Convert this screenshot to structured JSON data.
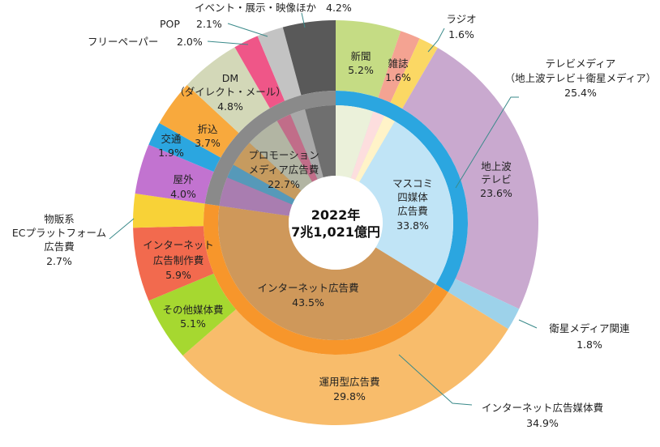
{
  "chart_data": {
    "type": "pie",
    "subtype": "nested-donut",
    "center_label": [
      "2022年",
      "7兆1,021億円"
    ],
    "outer_ring": [
      {
        "name": "新聞",
        "value": 5.2,
        "color": "#c5dc84"
      },
      {
        "name": "雑誌",
        "value": 1.6,
        "color": "#f4a392"
      },
      {
        "name": "ラジオ",
        "value": 1.6,
        "color": "#fbd864"
      },
      {
        "name": "地上波テレビ",
        "value": 23.6,
        "color": "#c9a9cf"
      },
      {
        "name": "衛星メディア関連",
        "value": 1.8,
        "color": "#9dd2ea"
      },
      {
        "name": "運用型広告費",
        "value": 29.8,
        "color": "#f8bc6b"
      },
      {
        "name": "その他媒体費",
        "value": 5.1,
        "color": "#a6d830"
      },
      {
        "name": "インターネット広告制作費",
        "value": 5.9,
        "color": "#f26a4e"
      },
      {
        "name": "物販系ECプラットフォーム広告費",
        "value": 2.7,
        "color": "#f8d237"
      },
      {
        "name": "屋外",
        "value": 4.0,
        "color": "#c273d0"
      },
      {
        "name": "交通",
        "value": 1.9,
        "color": "#2ba6e0"
      },
      {
        "name": "折込",
        "value": 3.7,
        "color": "#f8a93d"
      },
      {
        "name": "DM（ダイレクト・メール）",
        "value": 4.8,
        "color": "#d3d8b8"
      },
      {
        "name": "フリーペーパー",
        "value": 2.0,
        "color": "#ef5688"
      },
      {
        "name": "POP",
        "value": 2.1,
        "color": "#c3c3c3"
      },
      {
        "name": "イベント・展示・映像ほか",
        "value": 4.2,
        "color": "#595959"
      }
    ],
    "inner_ring": [
      {
        "name": "マスコミ四媒体広告費",
        "value": 33.8,
        "color": "#bde3f5",
        "band_color": "#2ba6e0"
      },
      {
        "name": "インターネット広告費",
        "value": 43.5,
        "color": "#cf985a",
        "band_color": "#f7962b"
      },
      {
        "name": "プロモーションメディア広告費",
        "value": 22.7,
        "color": "#8a8a8a",
        "band_color": "#8a8a8a"
      }
    ],
    "mass_subsegments": [
      {
        "name": "新聞",
        "color": "#ebf1da"
      },
      {
        "name": "雑誌",
        "color": "#fddede"
      },
      {
        "name": "ラジオ",
        "color": "#fff3c8"
      },
      {
        "name": "地上波テレビ",
        "color": "#c0e4f6"
      },
      {
        "name": "衛星メディア関連",
        "color": "#c0e4f6"
      }
    ],
    "unit": "%"
  },
  "labels": {
    "shinbun": [
      "新聞",
      "5.2%"
    ],
    "zasshi": [
      "雑誌",
      "1.6%"
    ],
    "radio": [
      "ラジオ",
      "1.6%"
    ],
    "tv_group": [
      "テレビメディア",
      "（地上波テレビ＋衛星メディア）",
      "25.4%"
    ],
    "chijoha": [
      "地上波",
      "テレビ",
      "23.6%"
    ],
    "eisei": [
      "衛星メディア関連",
      "1.8%"
    ],
    "net_media": [
      "インターネット広告媒体費",
      "34.9%"
    ],
    "unyou": [
      "運用型広告費",
      "29.8%"
    ],
    "sonota": [
      "その他媒体費",
      "5.1%"
    ],
    "seisaku": [
      "インターネット",
      "広告制作費",
      "5.9%"
    ],
    "ec": [
      "物販系",
      "ECプラットフォーム",
      "広告費",
      "2.7%"
    ],
    "okugai": [
      "屋外",
      "4.0%"
    ],
    "koutsu": [
      "交通",
      "1.9%"
    ],
    "orikomi": [
      "折込",
      "3.7%"
    ],
    "dm": [
      "DM",
      "（ダイレクト・メール）",
      "4.8%"
    ],
    "freepaper": [
      "フリーペーパー",
      "2.0%"
    ],
    "pop": [
      "POP",
      "2.1%"
    ],
    "event": [
      "イベント・展示・映像ほか",
      "4.2%"
    ],
    "mass4": [
      "マスコミ",
      "四媒体",
      "広告費",
      "33.8%"
    ],
    "netad": [
      "インターネット広告費",
      "43.5%"
    ],
    "promo": [
      "プロモーション",
      "メディア広告費",
      "22.7%"
    ]
  }
}
